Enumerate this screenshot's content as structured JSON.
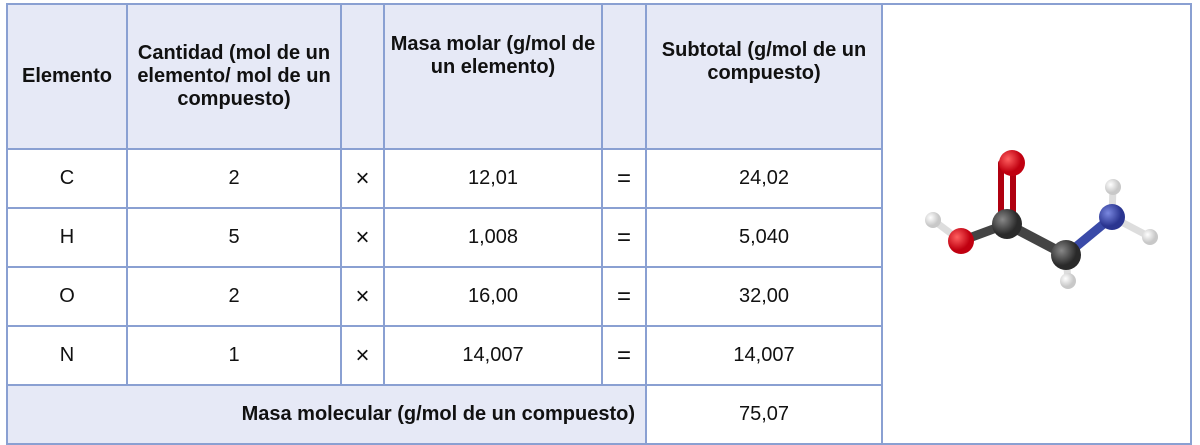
{
  "headers": {
    "element": "Elemento",
    "quantity": "Cantidad (mol de un elemento/ mol de un compuesto)",
    "molar_mass": "Masa molar (g/mol de un elemento)",
    "subtotal": "Subtotal (g/mol de un compuesto)"
  },
  "rows": [
    {
      "element": "C",
      "quantity": "2",
      "times": "×",
      "molar_mass": "12,01",
      "equals": "=",
      "subtotal": "24,02"
    },
    {
      "element": "H",
      "quantity": "5",
      "times": "×",
      "molar_mass": "1,008",
      "equals": "=",
      "subtotal": "5,040"
    },
    {
      "element": "O",
      "quantity": "2",
      "times": "×",
      "molar_mass": "16,00",
      "equals": "=",
      "subtotal": "32,00"
    },
    {
      "element": "N",
      "quantity": "1",
      "times": "×",
      "molar_mass": "14,007",
      "equals": "=",
      "subtotal": "14,007"
    }
  ],
  "total": {
    "label": "Masa molecular (g/mol de un compuesto)",
    "value": "75,07"
  },
  "colors": {
    "header_bg": "#e6e9f6",
    "border": "#8aa0d2",
    "carbon": "#3d3d3d",
    "oxygen": "#e0101a",
    "nitrogen": "#3a4aa8",
    "hydrogen": "#f4f4f4"
  }
}
